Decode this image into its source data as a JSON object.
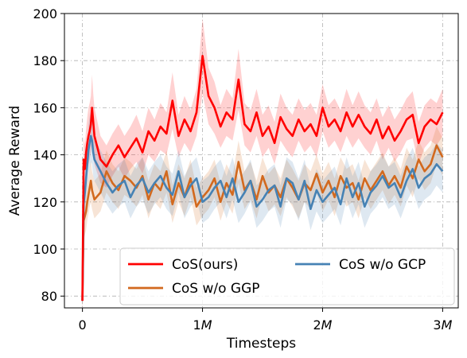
{
  "chart_data": {
    "type": "line",
    "xlabel": "Timesteps",
    "ylabel": "Average Reward",
    "xlim": [
      -0.15,
      3.13
    ],
    "ylim": [
      75,
      200
    ],
    "x_ticks": [
      0,
      1,
      2,
      3
    ],
    "x_tick_labels": [
      "0",
      "1M",
      "2M",
      "3M"
    ],
    "x_tick_math_suffix": [
      "",
      "M",
      "M",
      "M"
    ],
    "x_tick_numbers": [
      "0",
      "1",
      "2",
      "3"
    ],
    "y_ticks": [
      80,
      100,
      120,
      140,
      160,
      180,
      200
    ],
    "y_tick_labels": [
      "80",
      "100",
      "120",
      "140",
      "160",
      "180",
      "200"
    ],
    "grid": true,
    "legend_position": "lower-right",
    "band_opacity": 0.18,
    "x": [
      0.0,
      0.01,
      0.02,
      0.03,
      0.04,
      0.05,
      0.06,
      0.07,
      0.08,
      0.09,
      0.1,
      0.15,
      0.2,
      0.25,
      0.3,
      0.35,
      0.4,
      0.45,
      0.5,
      0.55,
      0.6,
      0.65,
      0.7,
      0.75,
      0.8,
      0.85,
      0.9,
      0.95,
      1.0,
      1.05,
      1.1,
      1.15,
      1.2,
      1.25,
      1.3,
      1.35,
      1.4,
      1.45,
      1.5,
      1.55,
      1.6,
      1.65,
      1.7,
      1.75,
      1.8,
      1.85,
      1.9,
      1.95,
      2.0,
      2.05,
      2.1,
      2.15,
      2.2,
      2.25,
      2.3,
      2.35,
      2.4,
      2.45,
      2.5,
      2.55,
      2.6,
      2.65,
      2.7,
      2.75,
      2.8,
      2.85,
      2.9,
      2.95,
      3.0
    ],
    "series": [
      {
        "name": "CoS(ours)",
        "color": "#ff0000",
        "values": [
          78,
          138,
          134,
          141,
          145,
          148,
          150,
          153,
          160,
          154,
          148,
          138,
          135,
          140,
          144,
          139,
          143,
          147,
          141,
          150,
          146,
          152,
          149,
          163,
          148,
          155,
          150,
          158,
          182,
          165,
          160,
          152,
          158,
          155,
          172,
          153,
          150,
          158,
          148,
          152,
          145,
          156,
          151,
          148,
          155,
          150,
          153,
          148,
          160,
          152,
          155,
          150,
          158,
          152,
          157,
          152,
          149,
          155,
          147,
          152,
          146,
          150,
          155,
          157,
          145,
          152,
          155,
          153,
          158
        ],
        "band": [
          10,
          10,
          10,
          10,
          11,
          12,
          12,
          12,
          14,
          12,
          12,
          10,
          9,
          9,
          9,
          9,
          9,
          10,
          9,
          10,
          9,
          10,
          9,
          12,
          9,
          10,
          9,
          10,
          16,
          12,
          11,
          9,
          10,
          9,
          13,
          9,
          9,
          10,
          9,
          9,
          9,
          10,
          9,
          9,
          9,
          9,
          9,
          9,
          10,
          9,
          9,
          9,
          10,
          9,
          10,
          9,
          9,
          9,
          9,
          9,
          9,
          9,
          9,
          10,
          9,
          9,
          9,
          9,
          10
        ]
      },
      {
        "name": "CoS w/o GGP",
        "color": "#d2691e",
        "values": [
          78,
          112,
          114,
          116,
          120,
          123,
          126,
          129,
          125,
          123,
          121,
          124,
          133,
          128,
          125,
          131,
          129,
          126,
          131,
          121,
          128,
          125,
          133,
          119,
          128,
          122,
          130,
          118,
          122,
          125,
          130,
          120,
          128,
          123,
          137,
          125,
          129,
          121,
          131,
          124,
          127,
          122,
          130,
          126,
          121,
          128,
          125,
          132,
          124,
          129,
          122,
          131,
          126,
          128,
          121,
          130,
          125,
          129,
          133,
          127,
          131,
          126,
          135,
          130,
          138,
          133,
          136,
          144,
          139
        ],
        "band": [
          8,
          8,
          8,
          8,
          8,
          8,
          8,
          9,
          8,
          8,
          8,
          8,
          9,
          8,
          8,
          8,
          8,
          8,
          8,
          8,
          8,
          8,
          9,
          8,
          8,
          8,
          8,
          8,
          8,
          8,
          8,
          8,
          8,
          8,
          9,
          8,
          8,
          8,
          8,
          8,
          8,
          8,
          8,
          8,
          8,
          8,
          8,
          8,
          8,
          8,
          8,
          8,
          8,
          8,
          8,
          8,
          8,
          8,
          8,
          8,
          8,
          8,
          8,
          8,
          8,
          8,
          8,
          8,
          8
        ]
      },
      {
        "name": "CoS w/o GCP",
        "color": "#4682b4",
        "values": [
          78,
          119,
          124,
          130,
          136,
          142,
          145,
          148,
          146,
          141,
          138,
          133,
          128,
          124,
          127,
          129,
          122,
          127,
          130,
          124,
          128,
          131,
          126,
          123,
          133,
          122,
          127,
          130,
          120,
          122,
          126,
          129,
          122,
          130,
          120,
          124,
          129,
          118,
          121,
          125,
          127,
          118,
          130,
          128,
          121,
          129,
          117,
          125,
          120,
          123,
          126,
          119,
          130,
          122,
          128,
          118,
          124,
          127,
          131,
          126,
          128,
          122,
          129,
          134,
          126,
          130,
          132,
          136,
          133
        ],
        "band": [
          9,
          9,
          9,
          9,
          10,
          11,
          11,
          11,
          10,
          10,
          9,
          9,
          9,
          9,
          9,
          9,
          9,
          9,
          9,
          9,
          9,
          9,
          9,
          9,
          9,
          9,
          9,
          9,
          9,
          9,
          9,
          9,
          9,
          9,
          9,
          9,
          9,
          9,
          9,
          9,
          9,
          9,
          9,
          9,
          9,
          9,
          9,
          9,
          9,
          9,
          9,
          9,
          9,
          9,
          9,
          9,
          9,
          9,
          9,
          9,
          9,
          9,
          9,
          9,
          9,
          9,
          9,
          9,
          9
        ]
      }
    ]
  }
}
